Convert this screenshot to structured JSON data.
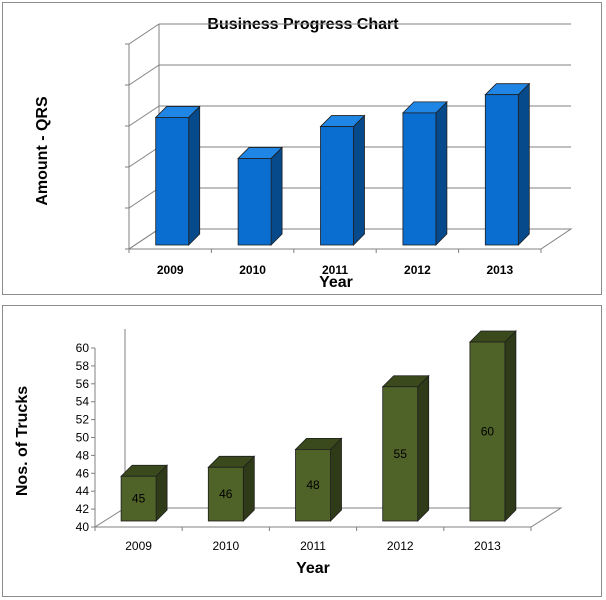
{
  "chart_data": [
    {
      "type": "bar",
      "title": "Business Progress Chart",
      "xlabel": "Year",
      "ylabel": "Amount - QRS",
      "categories": [
        "2009",
        "2010",
        "2011",
        "2012",
        "2013"
      ],
      "values": [
        2.8,
        1.9,
        2.6,
        2.9,
        3.3
      ],
      "ylim": [
        0,
        4.5
      ],
      "y_tick_labels_shown": false,
      "grid": true,
      "bar_color": "#0a6ed1",
      "bar_side_color": "#064a8c",
      "bar_top_color": "#1f86e6"
    },
    {
      "type": "bar",
      "title": "",
      "xlabel": "Year",
      "ylabel": "Nos. of Trucks",
      "categories": [
        "2009",
        "2010",
        "2011",
        "2012",
        "2013"
      ],
      "values": [
        45,
        46,
        48,
        55,
        60
      ],
      "data_labels": [
        "45",
        "46",
        "48",
        "55",
        "60"
      ],
      "ylim": [
        40,
        60
      ],
      "yticks": [
        40,
        42,
        44,
        46,
        48,
        50,
        52,
        54,
        56,
        58,
        60
      ],
      "grid": false,
      "bar_color": "#4f6228",
      "bar_side_color": "#2f3b18",
      "bar_top_color": "#3a4a1d"
    }
  ]
}
